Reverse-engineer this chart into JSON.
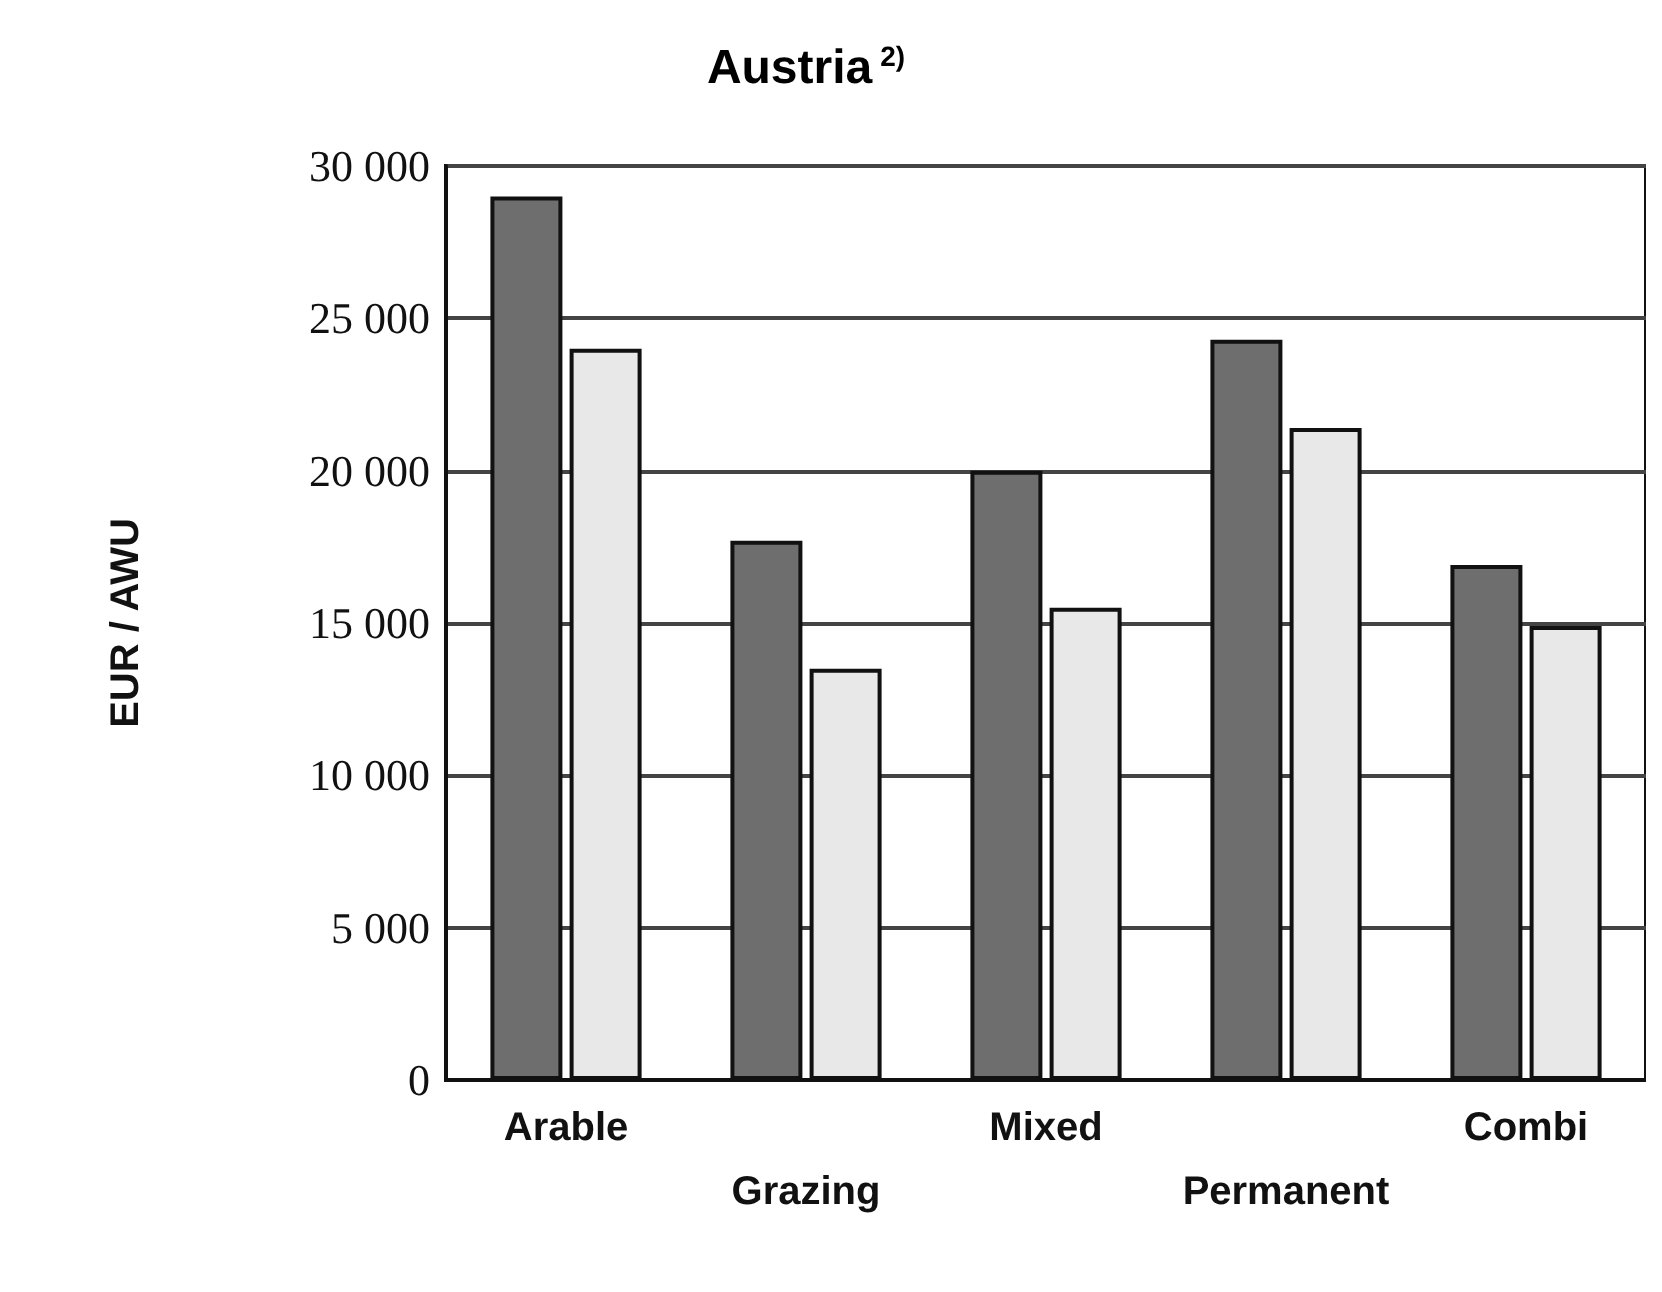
{
  "chart_data": {
    "type": "bar",
    "title": "Austria$^{2)}$",
    "ylabel": "EUR / AWU",
    "categories": [
      "Arable",
      "Grazing",
      "Mixed",
      "Permanent",
      "Combi"
    ],
    "series": [
      {
        "color": "#6e6e6e",
        "values": [
          29000,
          17700,
          20000,
          24300,
          16900
        ]
      },
      {
        "color": "#e8e8e8",
        "values": [
          24000,
          13500,
          15500,
          21400,
          14900
        ]
      }
    ],
    "ylim": [
      0,
      30000
    ],
    "yticks": [
      {
        "value": 0,
        "label": "0"
      },
      {
        "value": 5000,
        "label": "5 000"
      },
      {
        "value": 10000,
        "label": "10 000"
      },
      {
        "value": 15000,
        "label": "15 000"
      },
      {
        "value": 20000,
        "label": "20 000"
      },
      {
        "value": 25000,
        "label": "25 000"
      },
      {
        "value": 30000,
        "label": "30 000"
      }
    ],
    "grid": "y"
  }
}
